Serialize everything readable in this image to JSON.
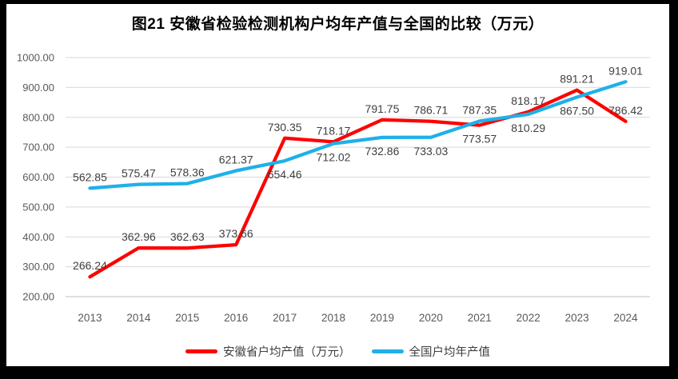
{
  "title": "图21 安徽省检验检测机构户均年产值与全国的比较（万元）",
  "colors": {
    "frame": "#000000",
    "background": "#ffffff",
    "gridline": "#d9d9d9",
    "axis_line": "#bfbfbf",
    "axis_text": "#595959",
    "data_label_text": "#404040",
    "title_text": "#000000",
    "anhui_series": "#ff0000",
    "national_series": "#1fb0e8"
  },
  "chart_data": {
    "type": "line",
    "categories": [
      "2013",
      "2014",
      "2015",
      "2016",
      "2017",
      "2018",
      "2019",
      "2020",
      "2021",
      "2022",
      "2023",
      "2024"
    ],
    "series": [
      {
        "name": "安徽省户均产值（万元）",
        "color": "#ff0000",
        "values": [
          266.24,
          362.96,
          362.63,
          373.66,
          730.35,
          718.17,
          791.75,
          786.71,
          773.57,
          818.17,
          891.21,
          786.42
        ],
        "label_positions": [
          "above",
          "above",
          "above",
          "above",
          "above",
          "above",
          "above",
          "above",
          "below",
          "above",
          "above",
          "above"
        ]
      },
      {
        "name": "全国户均年产值",
        "color": "#1fb0e8",
        "values": [
          562.85,
          575.47,
          578.36,
          621.37,
          654.46,
          712.02,
          732.86,
          733.03,
          787.35,
          810.29,
          867.5,
          919.01
        ],
        "label_positions": [
          "above",
          "above",
          "above",
          "above",
          "below",
          "below",
          "below",
          "below",
          "above",
          "below",
          "below",
          "above"
        ]
      }
    ],
    "ylim": [
      200,
      1000
    ],
    "ytick_step": 100,
    "ytick_label_decimals": 2,
    "value_decimals": 2,
    "grid": true,
    "legend_position": "bottom"
  }
}
